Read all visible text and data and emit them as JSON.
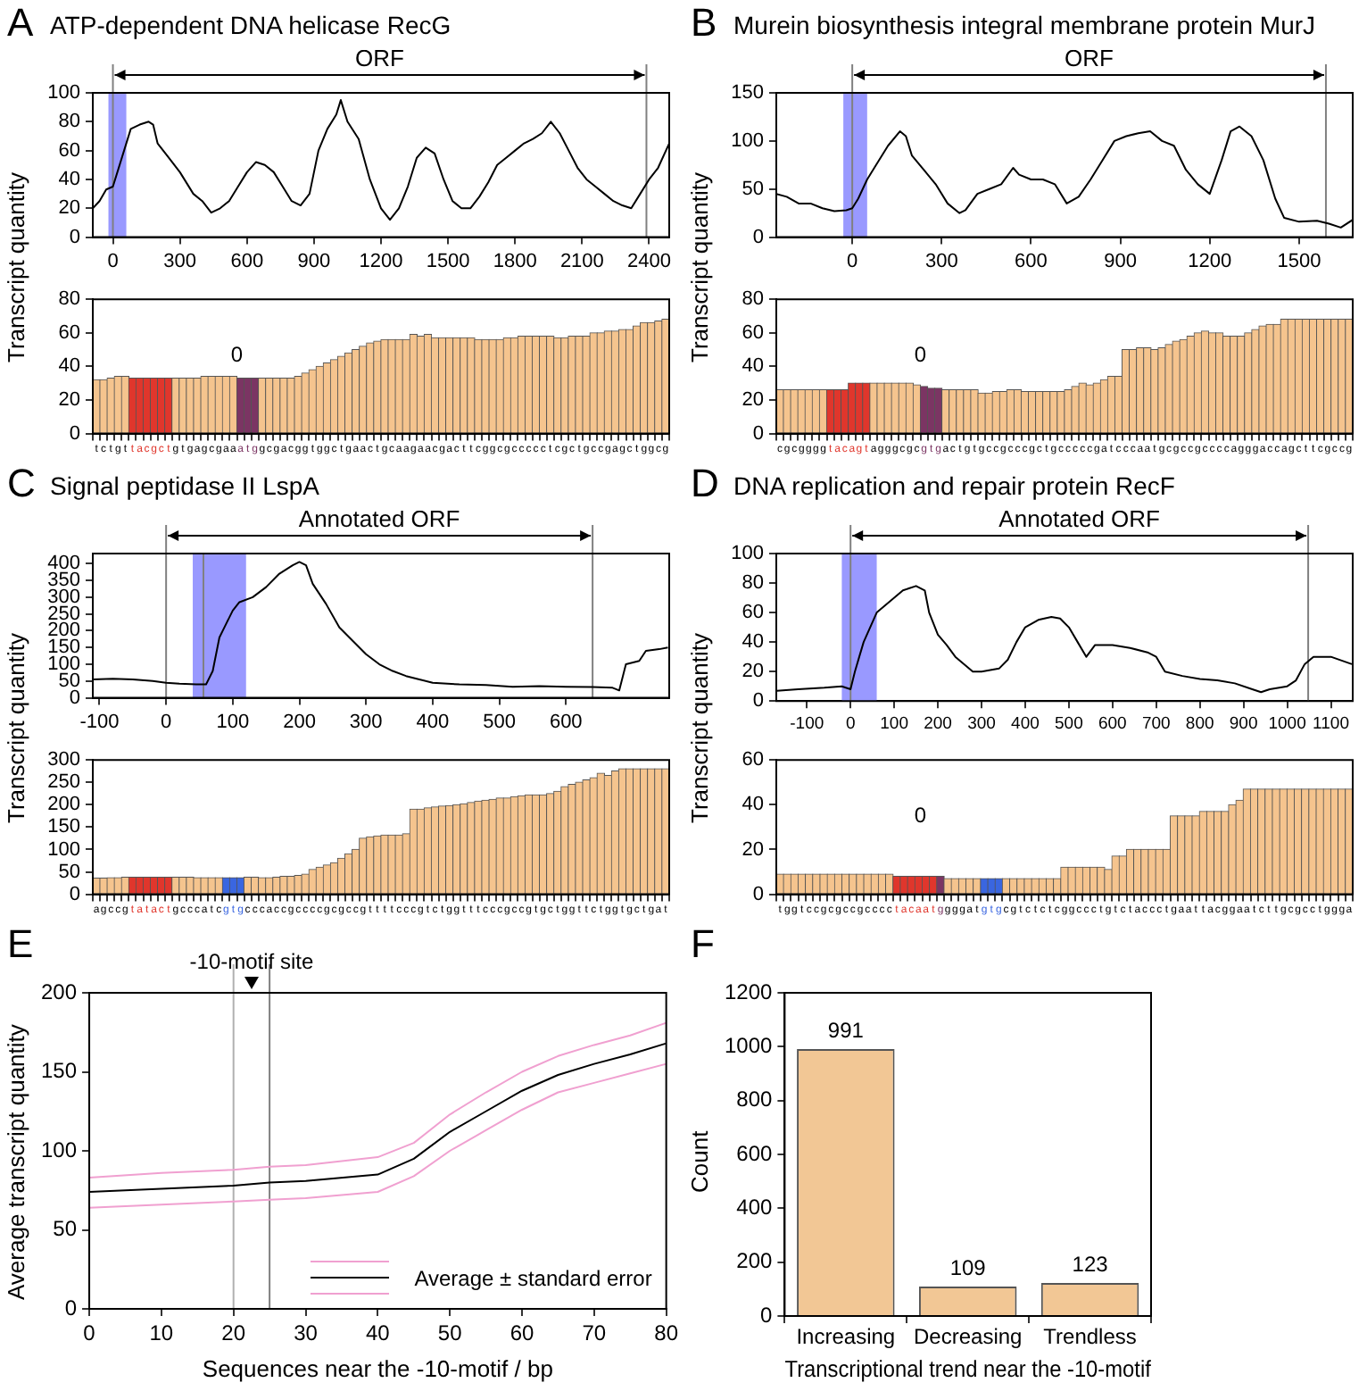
{
  "chart_data": [
    {
      "type": "line",
      "title": "ATP-dependent DNA helicase RecG",
      "ylabel": "Transcript quantity",
      "annotations": [
        "A",
        "ORF"
      ],
      "marker": "none",
      "xlim": [
        -90,
        2490
      ],
      "xticks": [
        0,
        300,
        600,
        900,
        1200,
        1500,
        1800,
        2100,
        2400
      ],
      "ylim": [
        0,
        100
      ],
      "yticks": [
        0,
        20,
        40,
        60,
        80,
        100
      ],
      "bands": [
        {
          "axis": "x",
          "from": -20,
          "to": 60,
          "color": "#9999ff"
        }
      ],
      "ref_lines": [
        {
          "axis": "x",
          "value": 0,
          "color": "#808080"
        },
        {
          "axis": "x",
          "value": 2388,
          "color": "#808080"
        }
      ],
      "series": [
        {
          "color": "#000000",
          "x": [
            -90,
            -60,
            -30,
            0,
            20,
            50,
            80,
            120,
            160,
            180,
            200,
            250,
            300,
            360,
            400,
            440,
            480,
            520,
            560,
            600,
            640,
            680,
            720,
            760,
            800,
            840,
            880,
            920,
            960,
            1000,
            1020,
            1050,
            1100,
            1150,
            1200,
            1240,
            1280,
            1320,
            1360,
            1400,
            1440,
            1480,
            1520,
            1560,
            1600,
            1640,
            1680,
            1720,
            1760,
            1800,
            1840,
            1880,
            1920,
            1960,
            2000,
            2040,
            2080,
            2120,
            2160,
            2200,
            2240,
            2280,
            2320,
            2360,
            2400,
            2440,
            2490
          ],
          "values": [
            20,
            25,
            33,
            35,
            45,
            60,
            75,
            78,
            80,
            78,
            65,
            55,
            45,
            30,
            25,
            17,
            20,
            25,
            35,
            45,
            52,
            50,
            45,
            35,
            25,
            22,
            30,
            60,
            75,
            85,
            95,
            80,
            68,
            40,
            20,
            12,
            20,
            35,
            55,
            62,
            58,
            40,
            25,
            20,
            20,
            28,
            38,
            50,
            55,
            60,
            65,
            68,
            72,
            80,
            72,
            60,
            48,
            40,
            35,
            30,
            25,
            22,
            20,
            30,
            40,
            48,
            65
          ]
        }
      ]
    },
    {
      "type": "bar",
      "annotations": [
        "0"
      ],
      "ylim": [
        0,
        80
      ],
      "yticks": [
        0,
        20,
        40,
        60,
        80
      ],
      "categories": [
        "t",
        "c",
        "t",
        "g",
        "t",
        "t",
        "a",
        "c",
        "g",
        "c",
        "t",
        "g",
        "t",
        "g",
        "a",
        "g",
        "c",
        "g",
        "a",
        "a",
        "a",
        "t",
        "g",
        "g",
        "c",
        "g",
        "a",
        "c",
        "g",
        "g",
        "t",
        "g",
        "g",
        "c",
        "t",
        "g",
        "a",
        "a",
        "c",
        "t",
        "g",
        "c",
        "a",
        "a",
        "g",
        "a",
        "a",
        "c",
        "g",
        "a",
        "c",
        "t",
        "t",
        "c",
        "g",
        "g",
        "c",
        "g",
        "c",
        "c",
        "c",
        "c",
        "c",
        "t",
        "c",
        "g",
        "c",
        "t",
        "g",
        "c",
        "c",
        "g",
        "a",
        "g",
        "c",
        "t",
        "g",
        "g",
        "c",
        "g"
      ],
      "values": [
        32,
        32,
        33,
        34,
        34,
        33,
        33,
        33,
        33,
        33,
        33,
        33,
        33,
        33,
        33,
        34,
        34,
        34,
        34,
        34,
        33,
        33,
        33,
        33,
        33,
        33,
        33,
        33,
        34,
        36,
        38,
        40,
        42,
        44,
        46,
        48,
        50,
        52,
        54,
        55,
        56,
        56,
        56,
        56,
        59,
        58,
        59,
        57,
        57,
        57,
        57,
        57,
        57,
        56,
        56,
        56,
        56,
        57,
        57,
        58,
        58,
        58,
        58,
        58,
        57,
        57,
        58,
        58,
        58,
        60,
        60,
        61,
        61,
        62,
        62,
        64,
        66,
        66,
        67,
        68
      ],
      "colors": [
        "#f5c48e",
        "#f5c48e",
        "#f5c48e",
        "#f5c48e",
        "#f5c48e",
        "#e0362c",
        "#e0362c",
        "#e0362c",
        "#e0362c",
        "#e0362c",
        "#e0362c",
        "#f5c48e",
        "#f5c48e",
        "#f5c48e",
        "#f5c48e",
        "#f5c48e",
        "#f5c48e",
        "#f5c48e",
        "#f5c48e",
        "#f5c48e",
        "#7b3563",
        "#7b3563",
        "#7b3563",
        "#f5c48e",
        "#f5c48e",
        "#f5c48e",
        "#f5c48e",
        "#f5c48e",
        "#f5c48e",
        "#f5c48e",
        "#f5c48e",
        "#f5c48e",
        "#f5c48e",
        "#f5c48e",
        "#f5c48e",
        "#f5c48e",
        "#f5c48e",
        "#f5c48e",
        "#f5c48e",
        "#f5c48e",
        "#f5c48e",
        "#f5c48e",
        "#f5c48e",
        "#f5c48e",
        "#f5c48e",
        "#f5c48e",
        "#f5c48e",
        "#f5c48e",
        "#f5c48e",
        "#f5c48e",
        "#f5c48e",
        "#f5c48e",
        "#f5c48e",
        "#f5c48e",
        "#f5c48e",
        "#f5c48e",
        "#f5c48e",
        "#f5c48e",
        "#f5c48e",
        "#f5c48e",
        "#f5c48e",
        "#f5c48e",
        "#f5c48e",
        "#f5c48e",
        "#f5c48e",
        "#f5c48e",
        "#f5c48e",
        "#f5c48e",
        "#f5c48e",
        "#f5c48e",
        "#f5c48e",
        "#f5c48e",
        "#f5c48e",
        "#f5c48e",
        "#f5c48e",
        "#f5c48e",
        "#f5c48e",
        "#f5c48e",
        "#f5c48e",
        "#f5c48e"
      ]
    },
    {
      "type": "line",
      "title": "Murein biosynthesis integral membrane protein MurJ",
      "ylabel": "Transcript quantity",
      "annotations": [
        "B",
        "ORF"
      ],
      "marker": "none",
      "xlim": [
        -255,
        1680
      ],
      "xticks": [
        0,
        300,
        600,
        900,
        1200,
        1500
      ],
      "ylim": [
        0,
        150
      ],
      "yticks": [
        0,
        50,
        100,
        150
      ],
      "bands": [
        {
          "axis": "x",
          "from": -30,
          "to": 50,
          "color": "#9999ff"
        }
      ],
      "ref_lines": [
        {
          "axis": "x",
          "value": 0,
          "color": "#808080"
        },
        {
          "axis": "x",
          "value": 1590,
          "color": "#808080"
        }
      ],
      "series": [
        {
          "color": "#000000",
          "x": [
            -255,
            -220,
            -180,
            -140,
            -100,
            -60,
            -20,
            0,
            20,
            50,
            80,
            120,
            160,
            180,
            200,
            240,
            280,
            320,
            360,
            380,
            420,
            460,
            500,
            540,
            560,
            600,
            640,
            680,
            720,
            760,
            800,
            840,
            880,
            920,
            960,
            1000,
            1040,
            1080,
            1120,
            1160,
            1200,
            1240,
            1270,
            1300,
            1340,
            1380,
            1420,
            1450,
            1500,
            1560,
            1600,
            1640,
            1680
          ],
          "values": [
            45,
            42,
            35,
            35,
            30,
            27,
            28,
            30,
            40,
            60,
            75,
            95,
            110,
            105,
            85,
            70,
            55,
            35,
            25,
            28,
            45,
            50,
            55,
            72,
            65,
            60,
            60,
            55,
            35,
            42,
            60,
            80,
            100,
            105,
            108,
            110,
            100,
            95,
            70,
            55,
            45,
            80,
            110,
            115,
            105,
            80,
            40,
            20,
            16,
            17,
            14,
            10,
            18
          ]
        }
      ]
    },
    {
      "type": "bar",
      "annotations": [
        "0"
      ],
      "ylim": [
        0,
        80
      ],
      "yticks": [
        0,
        20,
        40,
        60,
        80
      ],
      "categories": [
        "c",
        "g",
        "c",
        "g",
        "g",
        "g",
        "g",
        "t",
        "a",
        "c",
        "a",
        "g",
        "t",
        "a",
        "g",
        "g",
        "g",
        "c",
        "g",
        "c",
        "g",
        "t",
        "g",
        "a",
        "c",
        "t",
        "g",
        "t",
        "g",
        "c",
        "c",
        "g",
        "c",
        "c",
        "c",
        "g",
        "c",
        "t",
        "g",
        "c",
        "c",
        "c",
        "c",
        "c",
        "g",
        "a",
        "t",
        "c",
        "c",
        "c",
        "a",
        "a",
        "t",
        "g",
        "c",
        "g",
        "c",
        "c",
        "g",
        "c",
        "c",
        "c",
        "c",
        "a",
        "g",
        "g",
        "g",
        "a",
        "c",
        "c",
        "a",
        "g",
        "c",
        "t",
        "t",
        "c",
        "g",
        "c",
        "c",
        "g"
      ],
      "values": [
        26,
        26,
        26,
        26,
        26,
        26,
        26,
        26,
        26,
        26,
        30,
        30,
        30,
        30,
        30,
        30,
        30,
        30,
        30,
        29,
        28,
        27,
        27,
        26,
        26,
        26,
        26,
        26,
        24,
        24,
        25,
        25,
        26,
        26,
        25,
        25,
        25,
        25,
        25,
        25,
        26,
        28,
        30,
        29,
        30,
        32,
        34,
        34,
        50,
        50,
        51,
        51,
        50,
        51,
        53,
        55,
        56,
        58,
        60,
        61,
        60,
        60,
        58,
        58,
        58,
        60,
        62,
        64,
        65,
        65,
        68,
        68,
        68,
        68,
        68,
        68,
        68,
        68,
        68,
        68
      ],
      "colors": [
        "#f5c48e",
        "#f5c48e",
        "#f5c48e",
        "#f5c48e",
        "#f5c48e",
        "#f5c48e",
        "#f5c48e",
        "#e0362c",
        "#e0362c",
        "#e0362c",
        "#e0362c",
        "#e0362c",
        "#e0362c",
        "#f5c48e",
        "#f5c48e",
        "#f5c48e",
        "#f5c48e",
        "#f5c48e",
        "#f5c48e",
        "#f5c48e",
        "#7b3563",
        "#7b3563",
        "#7b3563",
        "#f5c48e",
        "#f5c48e",
        "#f5c48e",
        "#f5c48e",
        "#f5c48e",
        "#f5c48e",
        "#f5c48e",
        "#f5c48e",
        "#f5c48e",
        "#f5c48e",
        "#f5c48e",
        "#f5c48e",
        "#f5c48e",
        "#f5c48e",
        "#f5c48e",
        "#f5c48e",
        "#f5c48e",
        "#f5c48e",
        "#f5c48e",
        "#f5c48e",
        "#f5c48e",
        "#f5c48e",
        "#f5c48e",
        "#f5c48e",
        "#f5c48e",
        "#f5c48e",
        "#f5c48e",
        "#f5c48e",
        "#f5c48e",
        "#f5c48e",
        "#f5c48e",
        "#f5c48e",
        "#f5c48e",
        "#f5c48e",
        "#f5c48e",
        "#f5c48e",
        "#f5c48e",
        "#f5c48e",
        "#f5c48e",
        "#f5c48e",
        "#f5c48e",
        "#f5c48e",
        "#f5c48e",
        "#f5c48e",
        "#f5c48e",
        "#f5c48e",
        "#f5c48e",
        "#f5c48e",
        "#f5c48e",
        "#f5c48e",
        "#f5c48e",
        "#f5c48e",
        "#f5c48e",
        "#f5c48e",
        "#f5c48e",
        "#f5c48e",
        "#f5c48e"
      ]
    },
    {
      "type": "line",
      "title": "Signal peptidase II LspA",
      "ylabel": "Transcript quantity",
      "annotations": [
        "C",
        "Annotated ORF"
      ],
      "marker": "none",
      "xlim": [
        -110,
        755
      ],
      "xticks": [
        -100,
        0,
        100,
        200,
        300,
        400,
        500,
        600
      ],
      "ylim": [
        0,
        430
      ],
      "yticks": [
        0,
        50,
        100,
        150,
        200,
        250,
        300,
        350,
        400
      ],
      "bands": [
        {
          "axis": "x",
          "from": 40,
          "to": 120,
          "color": "#9999ff"
        }
      ],
      "ref_lines": [
        {
          "axis": "x",
          "value": 0,
          "color": "#808080"
        },
        {
          "axis": "x",
          "value": 56,
          "color": "#808080"
        },
        {
          "axis": "x",
          "value": 640,
          "color": "#808080"
        }
      ],
      "series": [
        {
          "color": "#000000",
          "x": [
            -110,
            -80,
            -50,
            -20,
            0,
            20,
            45,
            60,
            70,
            80,
            90,
            100,
            110,
            130,
            150,
            170,
            190,
            200,
            210,
            220,
            240,
            260,
            280,
            300,
            320,
            340,
            360,
            380,
            400,
            440,
            480,
            520,
            560,
            600,
            640,
            670,
            680,
            690,
            710,
            720,
            740,
            753
          ],
          "values": [
            55,
            57,
            55,
            50,
            45,
            42,
            40,
            40,
            80,
            180,
            220,
            260,
            285,
            300,
            330,
            370,
            395,
            405,
            395,
            340,
            280,
            210,
            170,
            130,
            100,
            80,
            65,
            55,
            45,
            40,
            38,
            33,
            35,
            33,
            32,
            30,
            22,
            100,
            110,
            140,
            145,
            150
          ]
        }
      ]
    },
    {
      "type": "bar",
      "ylim": [
        0,
        300
      ],
      "yticks": [
        0,
        50,
        100,
        150,
        200,
        250,
        300
      ],
      "categories": [
        "a",
        "g",
        "c",
        "c",
        "g",
        "t",
        "a",
        "t",
        "a",
        "c",
        "t",
        "g",
        "c",
        "c",
        "c",
        "a",
        "t",
        "c",
        "g",
        "t",
        "g",
        "c",
        "c",
        "c",
        "a",
        "c",
        "c",
        "g",
        "c",
        "c",
        "c",
        "c",
        "g",
        "c",
        "g",
        "c",
        "c",
        "g",
        "t",
        "t",
        "t",
        "t",
        "c",
        "c",
        "c",
        "g",
        "t",
        "c",
        "t",
        "g",
        "g",
        "t",
        "t",
        "t",
        "c",
        "c",
        "c",
        "g",
        "c",
        "c",
        "g",
        "t",
        "g",
        "c",
        "t",
        "g",
        "g",
        "t",
        "t",
        "c",
        "t",
        "g",
        "g",
        "t",
        "g",
        "c",
        "t",
        "g",
        "a",
        "t"
      ],
      "values": [
        36,
        36,
        37,
        37,
        38,
        38,
        38,
        38,
        38,
        38,
        38,
        38,
        38,
        38,
        37,
        37,
        37,
        37,
        37,
        37,
        37,
        38,
        38,
        37,
        37,
        38,
        40,
        40,
        42,
        45,
        55,
        60,
        65,
        70,
        80,
        90,
        100,
        125,
        128,
        130,
        132,
        132,
        132,
        135,
        190,
        190,
        193,
        195,
        197,
        198,
        200,
        202,
        205,
        208,
        210,
        212,
        215,
        215,
        218,
        220,
        222,
        222,
        222,
        225,
        230,
        240,
        245,
        250,
        255,
        260,
        270,
        265,
        275,
        280,
        280,
        280,
        280,
        280,
        280,
        280
      ],
      "colors": [
        "#f5c48e",
        "#f5c48e",
        "#f5c48e",
        "#f5c48e",
        "#f5c48e",
        "#e0362c",
        "#e0362c",
        "#e0362c",
        "#e0362c",
        "#e0362c",
        "#e0362c",
        "#f5c48e",
        "#f5c48e",
        "#f5c48e",
        "#f5c48e",
        "#f5c48e",
        "#f5c48e",
        "#f5c48e",
        "#3a66e0",
        "#3a66e0",
        "#3a66e0",
        "#f5c48e",
        "#f5c48e",
        "#f5c48e",
        "#f5c48e",
        "#f5c48e",
        "#f5c48e",
        "#f5c48e",
        "#f5c48e",
        "#f5c48e",
        "#f5c48e",
        "#f5c48e",
        "#f5c48e",
        "#f5c48e",
        "#f5c48e",
        "#f5c48e",
        "#f5c48e",
        "#f5c48e",
        "#f5c48e",
        "#f5c48e",
        "#f5c48e",
        "#f5c48e",
        "#f5c48e",
        "#f5c48e",
        "#f5c48e",
        "#f5c48e",
        "#f5c48e",
        "#f5c48e",
        "#f5c48e",
        "#f5c48e",
        "#f5c48e",
        "#f5c48e",
        "#f5c48e",
        "#f5c48e",
        "#f5c48e",
        "#f5c48e",
        "#f5c48e",
        "#f5c48e",
        "#f5c48e",
        "#f5c48e",
        "#f5c48e",
        "#f5c48e",
        "#f5c48e",
        "#f5c48e",
        "#f5c48e",
        "#f5c48e",
        "#f5c48e",
        "#f5c48e",
        "#f5c48e",
        "#f5c48e",
        "#f5c48e",
        "#f5c48e",
        "#f5c48e",
        "#f5c48e",
        "#f5c48e",
        "#f5c48e",
        "#f5c48e",
        "#f5c48e",
        "#f5c48e",
        "#f5c48e"
      ]
    },
    {
      "type": "line",
      "title": "DNA replication and repair protein RecF",
      "ylabel": "Transcript quantity",
      "annotations": [
        "D",
        "Annotated ORF"
      ],
      "marker": "none",
      "xlim": [
        -170,
        1150
      ],
      "xticks": [
        -100,
        0,
        100,
        200,
        300,
        400,
        500,
        600,
        700,
        800,
        900,
        1000,
        1100
      ],
      "ylim": [
        0,
        100
      ],
      "yticks": [
        0,
        20,
        40,
        60,
        80,
        100
      ],
      "bands": [
        {
          "axis": "x",
          "from": -20,
          "to": 60,
          "color": "#9999ff"
        }
      ],
      "ref_lines": [
        {
          "axis": "x",
          "value": 0,
          "color": "#808080"
        },
        {
          "axis": "x",
          "value": 1048,
          "color": "#808080"
        }
      ],
      "series": [
        {
          "color": "#000000",
          "x": [
            -169,
            -120,
            -60,
            -20,
            0,
            10,
            20,
            30,
            45,
            60,
            80,
            100,
            120,
            150,
            170,
            180,
            200,
            220,
            240,
            260,
            280,
            300,
            340,
            360,
            380,
            400,
            430,
            460,
            480,
            500,
            520,
            540,
            560,
            600,
            640,
            680,
            700,
            720,
            760,
            800,
            840,
            880,
            920,
            940,
            960,
            1000,
            1020,
            1040,
            1060,
            1100,
            1148
          ],
          "values": [
            7,
            8,
            9,
            10,
            8,
            20,
            30,
            40,
            50,
            60,
            65,
            70,
            75,
            78,
            75,
            60,
            45,
            38,
            30,
            25,
            20,
            20,
            22,
            28,
            40,
            50,
            55,
            57,
            56,
            50,
            40,
            30,
            38,
            38,
            36,
            33,
            30,
            20,
            17,
            15,
            14,
            12,
            8,
            6,
            8,
            10,
            14,
            25,
            30,
            30,
            25
          ]
        }
      ]
    },
    {
      "type": "bar",
      "annotations": [
        "0"
      ],
      "ylim": [
        0,
        60
      ],
      "yticks": [
        0,
        20,
        40,
        60
      ],
      "categories": [
        "t",
        "g",
        "g",
        "t",
        "c",
        "c",
        "g",
        "c",
        "g",
        "c",
        "c",
        "g",
        "c",
        "c",
        "c",
        "c",
        "t",
        "a",
        "c",
        "a",
        "a",
        "t",
        "g",
        "g",
        "g",
        "g",
        "a",
        "t",
        "g",
        "t",
        "g",
        "c",
        "g",
        "t",
        "c",
        "t",
        "c",
        "t",
        "c",
        "g",
        "g",
        "c",
        "c",
        "c",
        "t",
        "g",
        "t",
        "c",
        "t",
        "a",
        "c",
        "c",
        "c",
        "t",
        "g",
        "a",
        "a",
        "t",
        "t",
        "a",
        "c",
        "g",
        "g",
        "a",
        "a",
        "t",
        "c",
        "t",
        "t",
        "g",
        "c",
        "g",
        "c",
        "c",
        "t",
        "g",
        "g",
        "g",
        "a"
      ],
      "values": [
        9,
        9,
        9,
        9,
        9,
        9,
        9,
        9,
        9,
        9,
        9,
        9,
        9,
        9,
        9,
        9,
        8,
        8,
        8,
        8,
        8,
        8,
        8,
        7,
        7,
        7,
        7,
        7,
        7,
        7,
        7,
        7,
        7,
        7,
        7,
        7,
        7,
        7,
        7,
        12,
        12,
        12,
        12,
        12,
        12,
        11,
        17,
        17,
        20,
        20,
        20,
        20,
        20,
        20,
        35,
        35,
        35,
        35,
        37,
        37,
        37,
        37,
        40,
        42,
        47,
        47,
        47,
        47,
        47,
        47,
        47,
        47,
        47,
        47,
        47,
        47,
        47,
        47,
        47
      ],
      "colors": [
        "#f5c48e",
        "#f5c48e",
        "#f5c48e",
        "#f5c48e",
        "#f5c48e",
        "#f5c48e",
        "#f5c48e",
        "#f5c48e",
        "#f5c48e",
        "#f5c48e",
        "#f5c48e",
        "#f5c48e",
        "#f5c48e",
        "#f5c48e",
        "#f5c48e",
        "#f5c48e",
        "#e0362c",
        "#e0362c",
        "#e0362c",
        "#e0362c",
        "#e0362c",
        "#e0362c",
        "#7b3563",
        "#f5c48e",
        "#f5c48e",
        "#f5c48e",
        "#f5c48e",
        "#f5c48e",
        "#3a66e0",
        "#3a66e0",
        "#3a66e0",
        "#f5c48e",
        "#f5c48e",
        "#f5c48e",
        "#f5c48e",
        "#f5c48e",
        "#f5c48e",
        "#f5c48e",
        "#f5c48e",
        "#f5c48e",
        "#f5c48e",
        "#f5c48e",
        "#f5c48e",
        "#f5c48e",
        "#f5c48e",
        "#f5c48e",
        "#f5c48e",
        "#f5c48e",
        "#f5c48e",
        "#f5c48e",
        "#f5c48e",
        "#f5c48e",
        "#f5c48e",
        "#f5c48e",
        "#f5c48e",
        "#f5c48e",
        "#f5c48e",
        "#f5c48e",
        "#f5c48e",
        "#f5c48e",
        "#f5c48e",
        "#f5c48e",
        "#f5c48e",
        "#f5c48e",
        "#f5c48e",
        "#f5c48e",
        "#f5c48e",
        "#f5c48e",
        "#f5c48e",
        "#f5c48e",
        "#f5c48e",
        "#f5c48e",
        "#f5c48e",
        "#f5c48e",
        "#f5c48e",
        "#f5c48e",
        "#f5c48e",
        "#f5c48e",
        "#f5c48e"
      ]
    },
    {
      "type": "line",
      "xlabel": "Sequences near the -10-motif / bp",
      "ylabel": "Average transcript quantity",
      "annotations": [
        "E",
        "-10-motif site"
      ],
      "marker": "none",
      "legend": "bottom right",
      "xlim": [
        0,
        80
      ],
      "xticks": [
        0,
        10,
        20,
        30,
        40,
        50,
        60,
        70,
        80
      ],
      "ylim": [
        0,
        200
      ],
      "yticks": [
        0,
        50,
        100,
        150,
        200
      ],
      "ref_lines": [
        {
          "axis": "x",
          "value": 20,
          "color": "#b0b0b0"
        },
        {
          "axis": "x",
          "value": 25,
          "color": "#808080"
        }
      ],
      "x": [
        0,
        10,
        20,
        25,
        30,
        40,
        45,
        50,
        55,
        60,
        65,
        70,
        75,
        80
      ],
      "series": [
        {
          "color": "#f0a0d0",
          "values": [
            83,
            86,
            88,
            90,
            91,
            96,
            105,
            123,
            137,
            150,
            160,
            167,
            173,
            181
          ]
        },
        {
          "name": "Average ± standard error",
          "color": "#000000",
          "values": [
            74,
            76,
            78,
            80,
            81,
            85,
            95,
            112,
            125,
            138,
            148,
            155,
            161,
            168
          ]
        },
        {
          "color": "#f0a0d0",
          "values": [
            64,
            66,
            68,
            69,
            70,
            74,
            84,
            100,
            113,
            126,
            137,
            143,
            149,
            155
          ]
        }
      ]
    },
    {
      "type": "bar",
      "xlabel": "Transcriptional trend near the -10-motif",
      "ylabel": "Count",
      "annotations": [
        "F"
      ],
      "data_labels": true,
      "categories": [
        "Increasing",
        "Decreasing",
        "Trendless"
      ],
      "values": [
        991,
        109,
        123
      ],
      "color": "#f2c795",
      "ylim": [
        0,
        1200
      ],
      "yticks": [
        0,
        200,
        400,
        600,
        800,
        1000,
        1200
      ]
    }
  ]
}
